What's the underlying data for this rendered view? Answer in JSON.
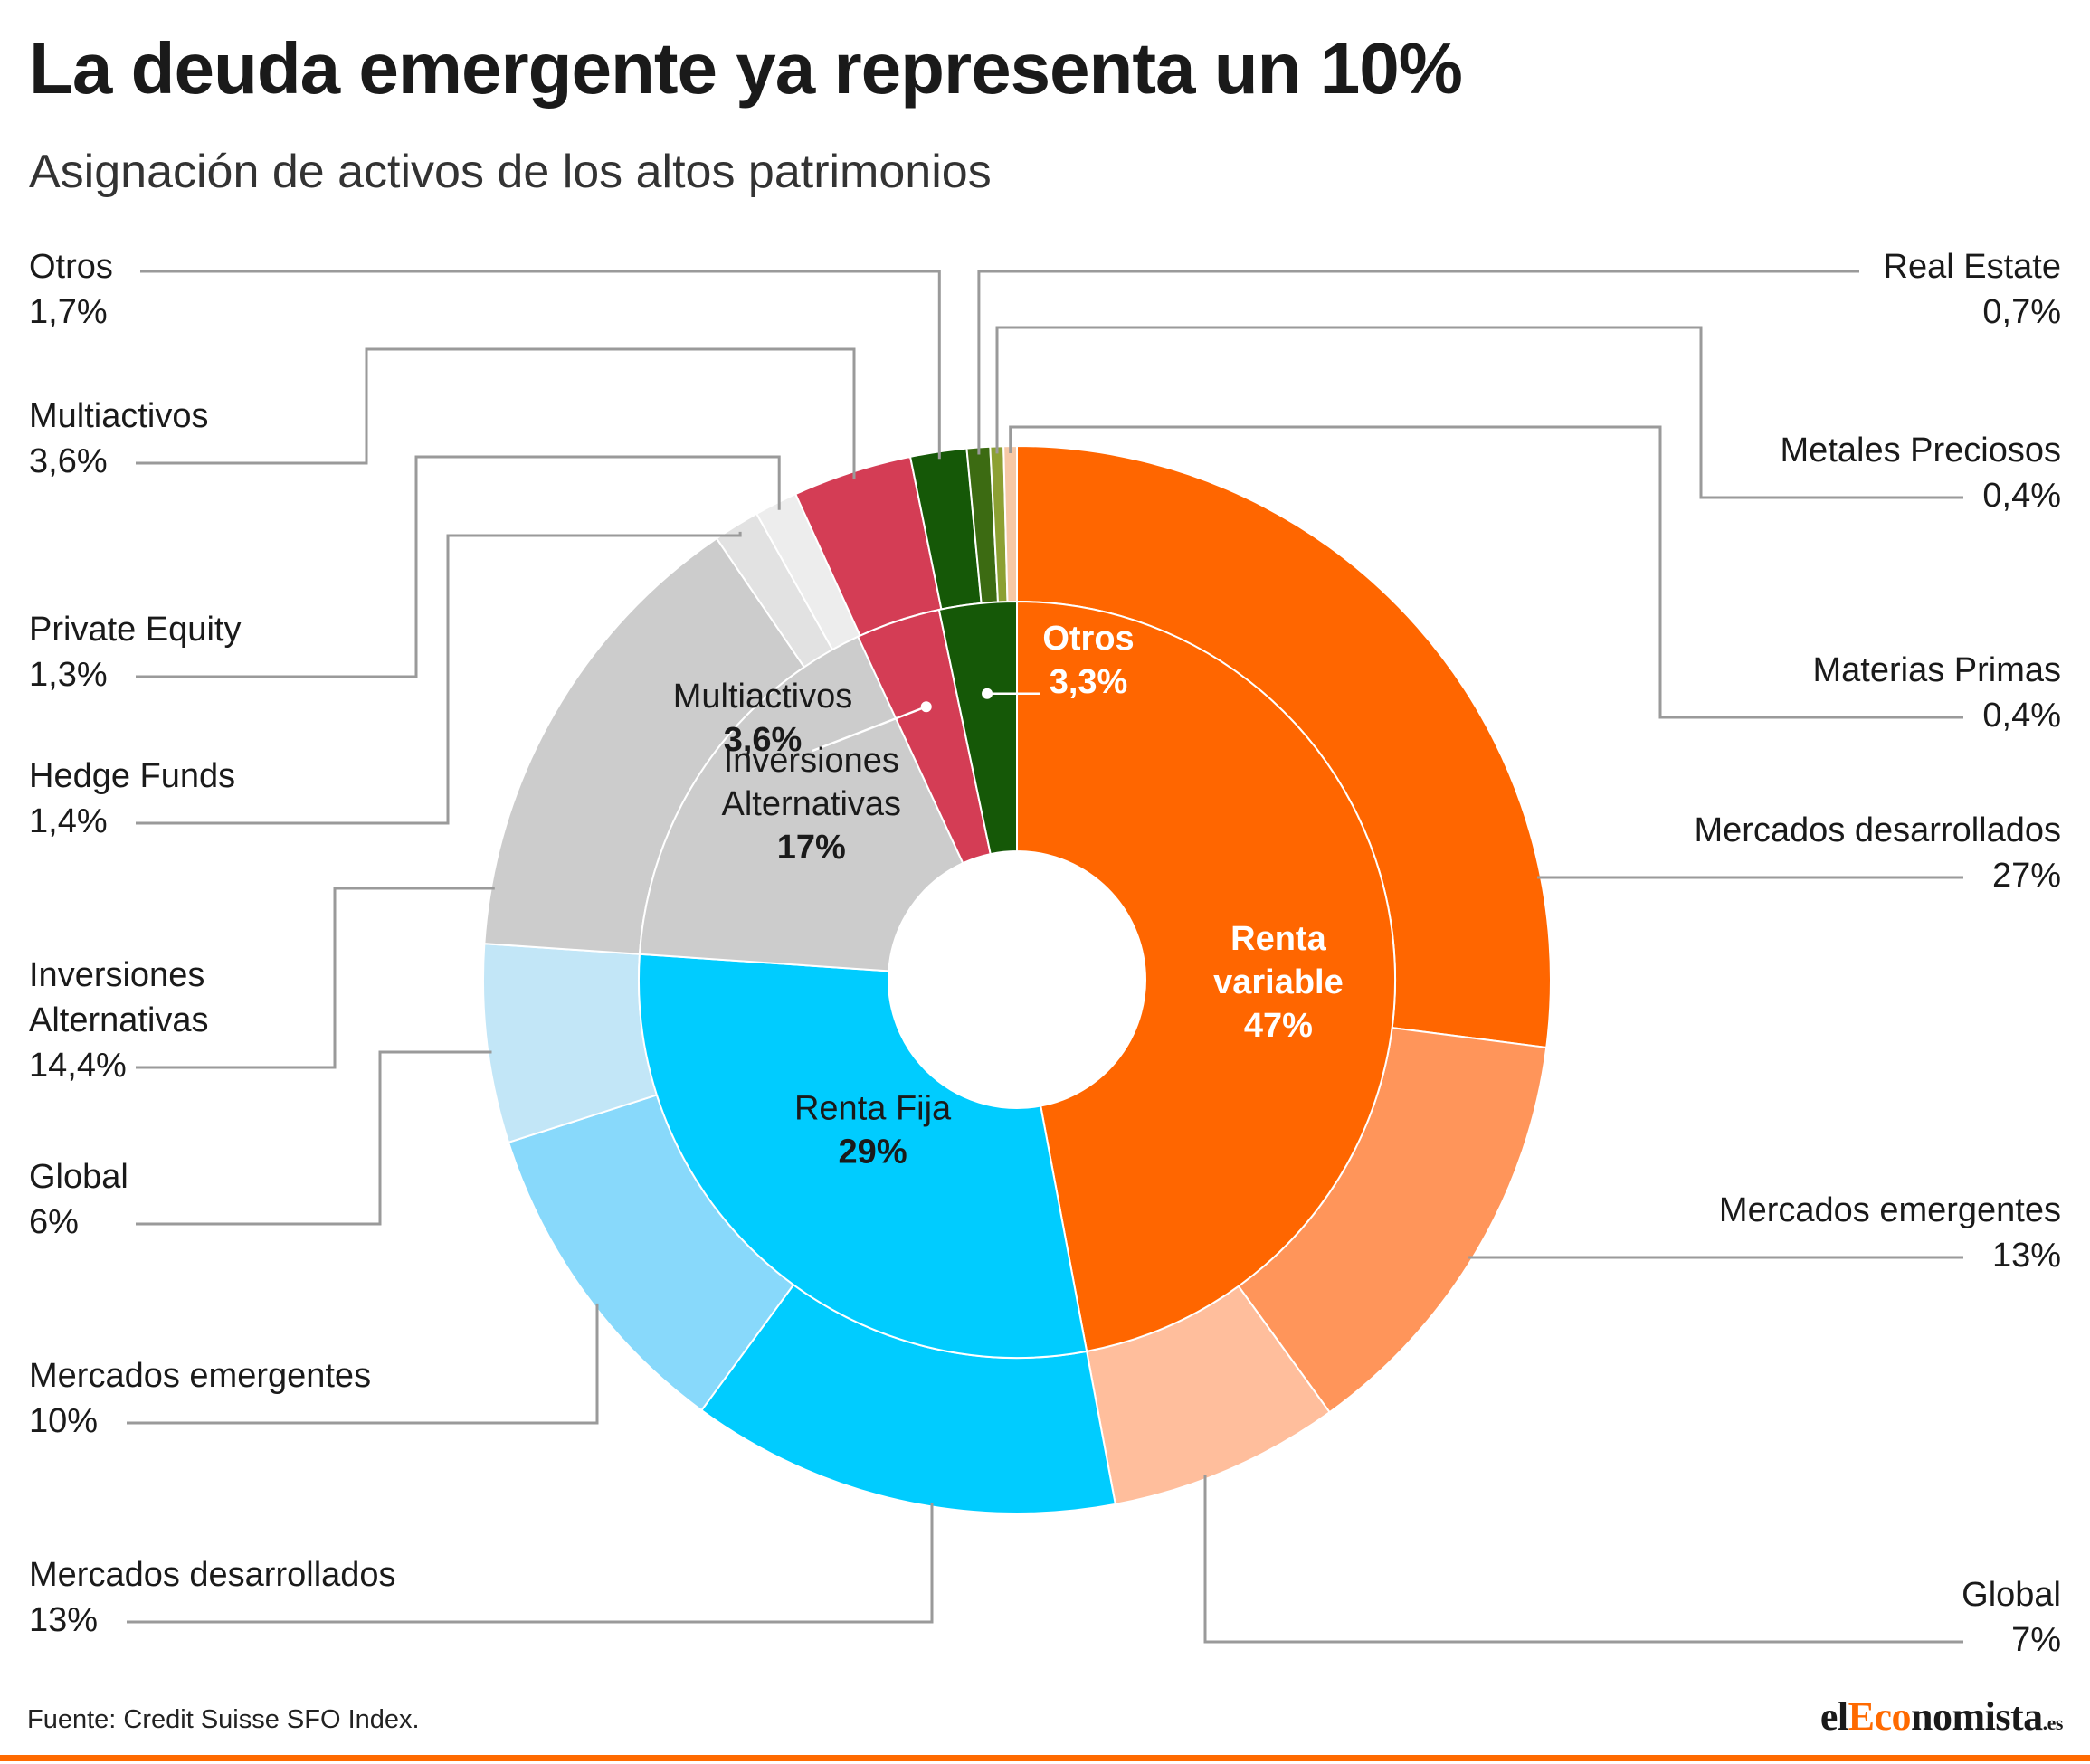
{
  "header": {
    "title": "La deuda emergente ya representa un 10%",
    "subtitle": "Asignación de activos de los altos patrimonios"
  },
  "footer": {
    "source": "Fuente: Credit Suisse SFO Index.",
    "logo_pre": "el",
    "logo_accent": "Eco",
    "logo_post": "nomista",
    "logo_suffix": ".es"
  },
  "colors": {
    "renta_variable": "#ff6600",
    "renta_variable_emergentes": "#ff955a",
    "renta_variable_global": "#ffbe9c",
    "renta_fija": "#00ccff",
    "renta_fija_emergentes": "#88d9fb",
    "renta_fija_global": "#c2e6f7",
    "alternativas": "#cccccc",
    "hedge_funds": "#e2e2e2",
    "private_equity": "#ededed",
    "multiactivos": "#d43d55",
    "otros": "#155807",
    "real_estate": "#3c6b12",
    "metales_preciosos": "#8ca033",
    "materias_primas": "#f6c8a6",
    "leader_line": "#9a9a9a",
    "accent": "#ff6a00"
  },
  "chart_data": {
    "type": "pie",
    "subtype": "nested-donut",
    "title": "La deuda emergente ya representa un 10%",
    "subtitle": "Asignación de activos de los altos patrimonios",
    "inner_ring": [
      {
        "name": "Renta variable",
        "value": 47,
        "label": "47%",
        "color": "#ff6600"
      },
      {
        "name": "Renta Fija",
        "value": 29,
        "label": "29%",
        "color": "#00ccff"
      },
      {
        "name": "Inversiones Alternativas",
        "value": 17,
        "label": "17%",
        "color": "#cccccc"
      },
      {
        "name": "Multiactivos",
        "value": 3.6,
        "label": "3,6%",
        "color": "#d43d55"
      },
      {
        "name": "Otros",
        "value": 3.3,
        "label": "3,3%",
        "color": "#155807"
      }
    ],
    "outer_ring": [
      {
        "name": "Mercados desarrollados",
        "value": 27,
        "label": "27%",
        "color": "#ff6600"
      },
      {
        "name": "Mercados emergentes",
        "value": 13,
        "label": "13%",
        "color": "#ff955a"
      },
      {
        "name": "Global",
        "value": 7,
        "label": "7%",
        "color": "#ffbe9c"
      },
      {
        "name": "Mercados desarrollados",
        "value": 13,
        "label": "13%",
        "color": "#00ccff"
      },
      {
        "name": "Mercados emergentes",
        "value": 10,
        "label": "10%",
        "color": "#88d9fb"
      },
      {
        "name": "Global",
        "value": 6,
        "label": "6%",
        "color": "#c2e6f7"
      },
      {
        "name": "Inversiones Alternativas",
        "value": 14.4,
        "label": "14,4%",
        "color": "#cccccc"
      },
      {
        "name": "Hedge Funds",
        "value": 1.4,
        "label": "1,4%",
        "color": "#e2e2e2"
      },
      {
        "name": "Private Equity",
        "value": 1.3,
        "label": "1,3%",
        "color": "#ededed"
      },
      {
        "name": "Multiactivos",
        "value": 3.6,
        "label": "3,6%",
        "color": "#d43d55"
      },
      {
        "name": "Otros",
        "value": 1.7,
        "label": "1,7%",
        "color": "#155807"
      },
      {
        "name": "Real Estate",
        "value": 0.7,
        "label": "0,7%",
        "color": "#3c6b12"
      },
      {
        "name": "Metales Preciosos",
        "value": 0.4,
        "label": "0,4%",
        "color": "#8ca033"
      },
      {
        "name": "Materias Primas",
        "value": 0.4,
        "label": "0,4%",
        "color": "#f6c8a6"
      }
    ]
  }
}
